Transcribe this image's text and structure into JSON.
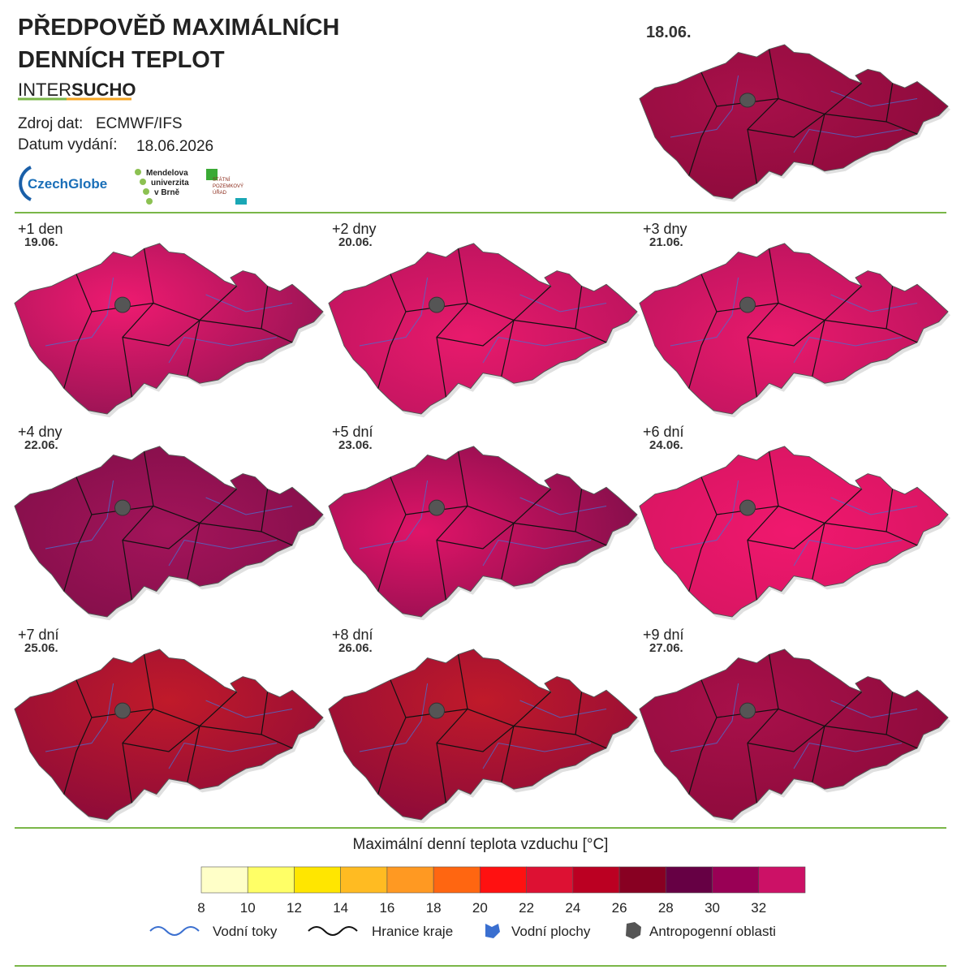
{
  "header": {
    "title_lines": [
      "PŘEDPOVĚĎ MAXIMÁLNÍCH",
      "DENNÍCH TEPLOT"
    ],
    "brand": [
      "INTER",
      "SUCHO"
    ],
    "source_label": "Zdroj dat:",
    "source": "ECMWF/IFS",
    "issue_label": "Datum vydání:",
    "issue_date": "18.06.2026",
    "logos": {
      "czechglobe": "CzechGlobe",
      "mendelu": [
        "Mendelova",
        "univerzita",
        "v Brně"
      ],
      "spu": [
        "STÁTNÍ",
        "POZEMKOVÝ",
        "ÚŘAD"
      ]
    }
  },
  "main_map": {
    "date": "18.06."
  },
  "panels": [
    {
      "offset": "+1 den",
      "date": "19.06."
    },
    {
      "offset": "+2 dny",
      "date": "20.06."
    },
    {
      "offset": "+3 dny",
      "date": "21.06."
    },
    {
      "offset": "+4 dny",
      "date": "22.06."
    },
    {
      "offset": "+5 dní",
      "date": "23.06."
    },
    {
      "offset": "+6 dní",
      "date": "24.06."
    },
    {
      "offset": "+7 dní",
      "date": "25.06."
    },
    {
      "offset": "+8 dní",
      "date": "26.06."
    },
    {
      "offset": "+9 dní",
      "date": "27.06."
    }
  ],
  "legend": {
    "title": "Maximální denní teplota vzduchu [°C]",
    "colors": [
      "#ffffc8",
      "#ffff66",
      "#ffe600",
      "#ffbb22",
      "#ff9922",
      "#ff6611",
      "#ff1111",
      "#dd1133",
      "#bb0022",
      "#880022",
      "#660044",
      "#990055",
      "#cc1166"
    ],
    "ticks": [
      8,
      10,
      12,
      14,
      16,
      18,
      20,
      22,
      24,
      26,
      28,
      30,
      32
    ],
    "items": [
      "Vodní toky",
      "Hranice kraje",
      "Vodní plochy",
      "Antropogenní oblasti"
    ]
  }
}
